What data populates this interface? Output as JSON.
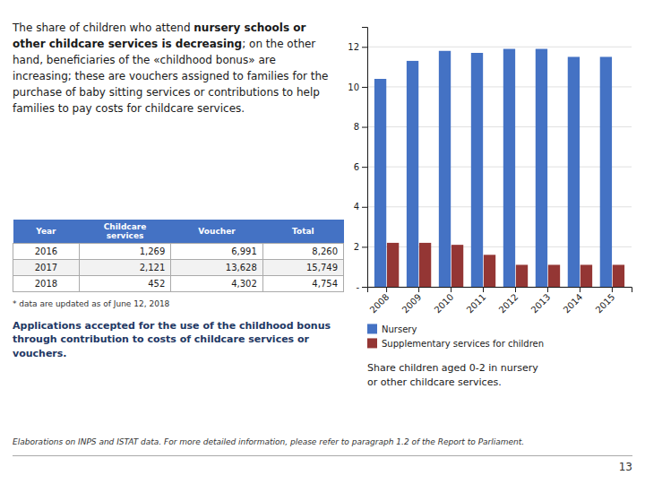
{
  "chart_data": {
    "type": "bar",
    "categories": [
      "2008",
      "2009",
      "2010",
      "2011",
      "2012",
      "2013",
      "2014",
      "2015"
    ],
    "series": [
      {
        "name": "Nursery",
        "color": "#4472C4",
        "values": [
          10.4,
          11.3,
          11.8,
          11.7,
          11.9,
          11.9,
          11.5,
          11.5
        ]
      },
      {
        "name": "Supplementary services for children",
        "color": "#943634",
        "values": [
          2.2,
          2.2,
          2.1,
          1.6,
          1.1,
          1.1,
          1.1,
          1.1
        ]
      }
    ],
    "ylim": [
      0,
      13
    ],
    "yticks": [
      {
        "value": 0,
        "label": "-"
      },
      2,
      4,
      6,
      8,
      10,
      12
    ],
    "grid": true,
    "legend": "lower left"
  },
  "caption": "Share children aged 0-2 in nursery\nor other childcare services.",
  "paragraph": {
    "normal": "The share of children who attend ",
    "bold": "nursery schools or other childcare services is decreasing",
    "rest": "; on the other hand, beneficiaries of the «childhood bonus» are increasing; these are vouchers assigned to families for the purchase of baby sitting services or contributions to help families to pay costs for childcare services."
  },
  "table": {
    "headers": [
      "Year",
      "Childcare\nservices",
      "Voucher",
      "Total"
    ],
    "rows": [
      [
        "2016",
        "1,269",
        "6,991",
        "8,260"
      ],
      [
        "2017",
        "2,121",
        "13,628",
        "15,749"
      ],
      [
        "2018",
        "452",
        "4,302",
        "4,754"
      ]
    ]
  },
  "footnote": "* data are updated as of June 12, 2018",
  "bold_text": "Applications accepted for the use of the childhood bonus through contribution to costs of childcare services or vouchers.",
  "italic_text": "Elaborations on INPS and ISTAT data. For more detailed information, please refer to paragraph 1.2 of the Report to Parliament.",
  "page_num": "13"
}
